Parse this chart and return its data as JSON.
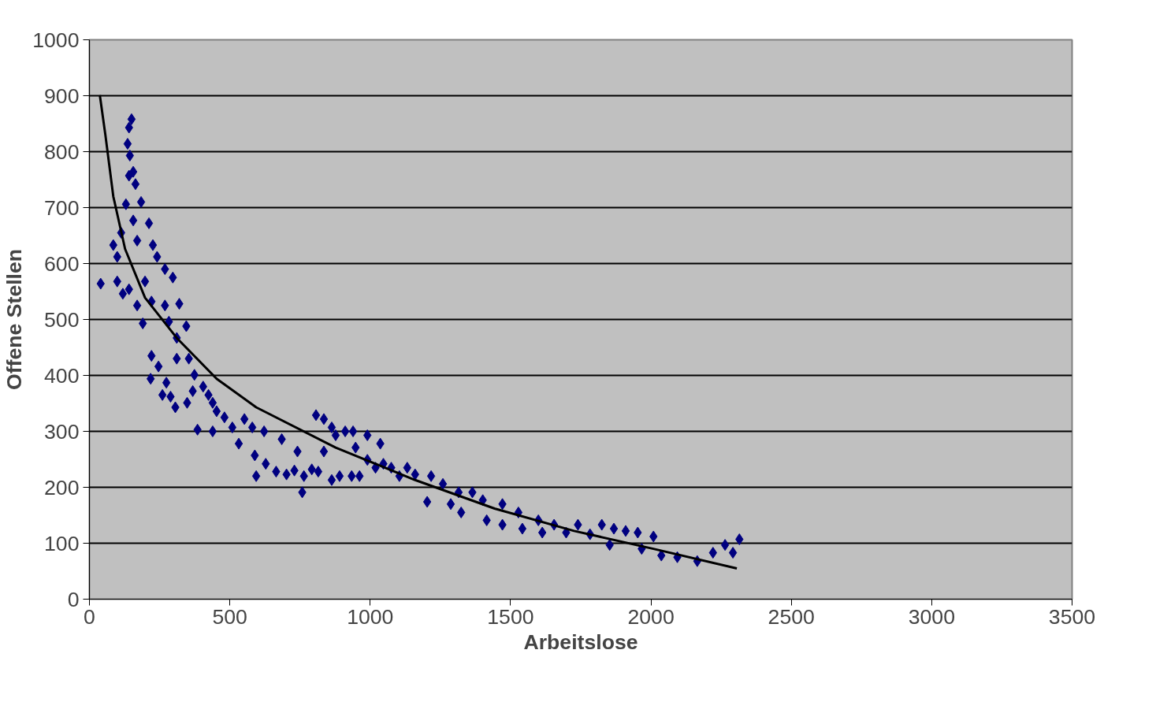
{
  "chart_data": {
    "type": "scatter",
    "xlabel": "Arbeitslose",
    "ylabel": "Offene Stellen",
    "xlim": [
      0,
      3500
    ],
    "ylim": [
      0,
      1000
    ],
    "xticks": [
      0,
      500,
      1000,
      1500,
      2000,
      2500,
      3000,
      3500
    ],
    "yticks": [
      0,
      100,
      200,
      300,
      400,
      500,
      600,
      700,
      800,
      900,
      1000
    ],
    "grid": "y",
    "marker": "diamond",
    "series": [
      {
        "color": "#000080",
        "x": [
          150,
          141,
          136,
          144,
          156,
          141,
          164,
          130,
          184,
          156,
          212,
          113,
          85,
          99,
          170,
          226,
          241,
          269,
          297,
          40,
          99,
          119,
          141,
          198,
          170,
          221,
          269,
          190,
          320,
          283,
          345,
          311,
          221,
          311,
          354,
          246,
          218,
          274,
          260,
          289,
          306,
          348,
          368,
          374,
          405,
          424,
          385,
          439,
          453,
          439,
          481,
          509,
          532,
          552,
          580,
          622,
          589,
          594,
          628,
          665,
          685,
          702,
          730,
          741,
          758,
          764,
          792,
          807,
          835,
          815,
          835,
          863,
          877,
          863,
          891,
          911,
          939,
          934,
          962,
          948,
          990,
          990,
          1019,
          1036,
          1047,
          1075,
          1104,
          1132,
          1160,
          1203,
          1217,
          1259,
          1287,
          1315,
          1324,
          1364,
          1401,
          1415,
          1471,
          1471,
          1528,
          1542,
          1599,
          1613,
          1655,
          1698,
          1740,
          1783,
          1825,
          1853,
          1868,
          1910,
          1967,
          1953,
          2009,
          2037,
          2094,
          2165,
          2221,
          2264,
          2292,
          2315
        ],
        "values": [
          858,
          843,
          814,
          793,
          764,
          757,
          742,
          706,
          710,
          677,
          672,
          655,
          633,
          612,
          641,
          633,
          612,
          590,
          575,
          564,
          568,
          546,
          554,
          568,
          525,
          532,
          525,
          493,
          528,
          496,
          488,
          467,
          435,
          430,
          430,
          416,
          394,
          387,
          365,
          362,
          343,
          351,
          372,
          401,
          380,
          365,
          303,
          351,
          336,
          300,
          325,
          307,
          278,
          322,
          307,
          300,
          257,
          220,
          242,
          228,
          286,
          223,
          230,
          264,
          191,
          220,
          232,
          329,
          322,
          228,
          264,
          307,
          293,
          213,
          220,
          300,
          300,
          220,
          220,
          271,
          293,
          249,
          235,
          278,
          242,
          235,
          220,
          235,
          223,
          174,
          220,
          206,
          170,
          191,
          155,
          191,
          177,
          141,
          170,
          133,
          155,
          126,
          141,
          119,
          133,
          119,
          133,
          116,
          133,
          97,
          126,
          122,
          90,
          119,
          112,
          78,
          75,
          68,
          83,
          97,
          83,
          107
        ]
      },
      {
        "type": "line",
        "marker": "none",
        "color": "#000000",
        "x": [
          37,
          57,
          85,
          127,
          198,
          311,
          453,
          594,
          877,
          1160,
          1443,
          1726,
          2009,
          2306
        ],
        "values": [
          901,
          829,
          720,
          626,
          539,
          467,
          394,
          343,
          271,
          213,
          162,
          122,
          90,
          55
        ]
      }
    ]
  }
}
